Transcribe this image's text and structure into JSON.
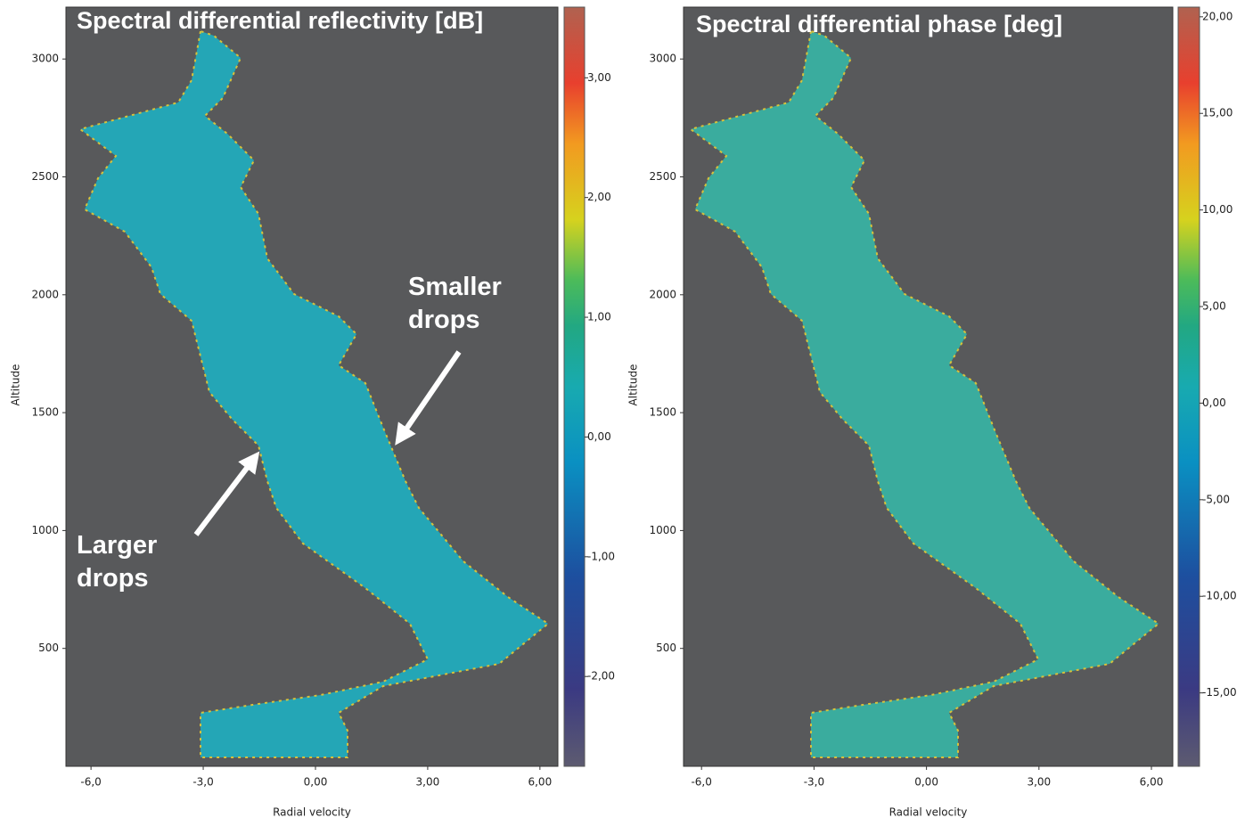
{
  "chart_data": [
    {
      "type": "heatmap",
      "title": "Spectral differential reflectivity  [dB]",
      "xlabel": "Radial velocity",
      "ylabel": "Altitude",
      "xlim": [
        -6.67,
        6.48
      ],
      "ylim": [
        0,
        3220
      ],
      "xticks": [
        {
          "value": -6,
          "label": "-6,0"
        },
        {
          "value": -3,
          "label": "-3,0"
        },
        {
          "value": 0,
          "label": "0,00"
        },
        {
          "value": 3,
          "label": "3,00"
        },
        {
          "value": 6,
          "label": "6,00"
        }
      ],
      "yticks": [
        500,
        1000,
        1500,
        2000,
        2500,
        3000
      ],
      "clim": [
        -2.75,
        3.59
      ],
      "cticks": [
        {
          "value": -2,
          "label": "-2,00"
        },
        {
          "value": -1,
          "label": "-1,00"
        },
        {
          "value": 0,
          "label": "0,00"
        },
        {
          "value": 1,
          "label": "1,00"
        },
        {
          "value": 2,
          "label": "2,00"
        },
        {
          "value": 3,
          "label": "3,00"
        }
      ],
      "annotations": [
        "Smaller drops",
        "Larger drops"
      ]
    },
    {
      "type": "heatmap",
      "title": "Spectral differential phase  [deg]",
      "xlabel": "Radial velocity",
      "ylabel": "Altitude",
      "xlim": [
        -6.48,
        6.57
      ],
      "ylim": [
        0,
        3220
      ],
      "xticks": [
        {
          "value": -6,
          "label": "-6,0"
        },
        {
          "value": -3,
          "label": "-3,0"
        },
        {
          "value": 0,
          "label": "0,00"
        },
        {
          "value": 3,
          "label": "3,00"
        },
        {
          "value": 6,
          "label": "6,00"
        }
      ],
      "yticks": [
        500,
        1000,
        1500,
        2000,
        2500,
        3000
      ],
      "clim": [
        -18.8,
        20.5
      ],
      "cticks": [
        {
          "value": -15,
          "label": "-15,00"
        },
        {
          "value": -10,
          "label": "-10,00"
        },
        {
          "value": -5,
          "label": "-5,00"
        },
        {
          "value": 0,
          "label": "0,00"
        },
        {
          "value": 5,
          "label": "5,00"
        },
        {
          "value": 10,
          "label": "10,00"
        },
        {
          "value": 15,
          "label": "15,00"
        },
        {
          "value": 20,
          "label": "20,00"
        }
      ]
    }
  ]
}
